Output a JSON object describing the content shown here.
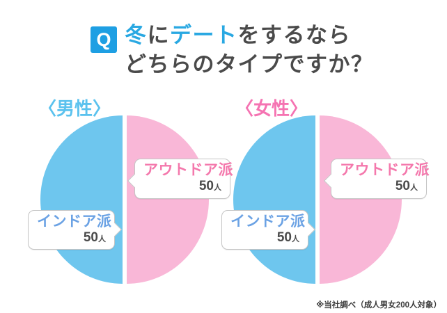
{
  "colors": {
    "badge_blue": "#1E9FE3",
    "title_accent_blue": "#29A8E2",
    "title_dark_text": "#4A4A4A",
    "male_label_blue": "#5BC2EE",
    "female_label_pink": "#F573B2",
    "pie_blue": "#6EC6EE",
    "pie_pink": "#F9B7D7",
    "indoor_text_blue": "#6BA2E4",
    "outdoor_text_pink": "#F478AC",
    "callout_border": "#C5C5C5"
  },
  "header": {
    "badge": "Q",
    "title_line1_segments": [
      {
        "text": "冬",
        "accent": true
      },
      {
        "text": "に",
        "accent": false
      },
      {
        "text": "デート",
        "accent": true
      },
      {
        "text": "をするなら",
        "accent": false
      }
    ],
    "title_line2": "どちらのタイプですか？"
  },
  "charts": [
    {
      "id": "male",
      "group_label": "〈男性〉",
      "indoor": {
        "label": "インドア派",
        "value": "50",
        "unit": "人"
      },
      "outdoor": {
        "label": "アウトドア派",
        "value": "50",
        "unit": "人"
      }
    },
    {
      "id": "female",
      "group_label": "〈女性〉",
      "indoor": {
        "label": "インドア派",
        "value": "50",
        "unit": "人"
      },
      "outdoor": {
        "label": "アウトドア派",
        "value": "50",
        "unit": "人"
      }
    }
  ],
  "chart_data": [
    {
      "type": "pie",
      "title": "〈男性〉",
      "labels": [
        "インドア派",
        "アウトドア派"
      ],
      "values": [
        50,
        50
      ],
      "unit": "人",
      "colors": [
        "#6EC6EE",
        "#F9B7D7"
      ],
      "layout": "indoor left half (blue), outdoor right half (pink), white divider gap"
    },
    {
      "type": "pie",
      "title": "〈女性〉",
      "labels": [
        "インドア派",
        "アウトドア派"
      ],
      "values": [
        50,
        50
      ],
      "unit": "人",
      "colors": [
        "#6EC6EE",
        "#F9B7D7"
      ],
      "layout": "indoor left half (blue), outdoor right half (pink), white divider gap"
    }
  ],
  "footer": {
    "note": "※当社調べ（成人男女200人対象）"
  }
}
